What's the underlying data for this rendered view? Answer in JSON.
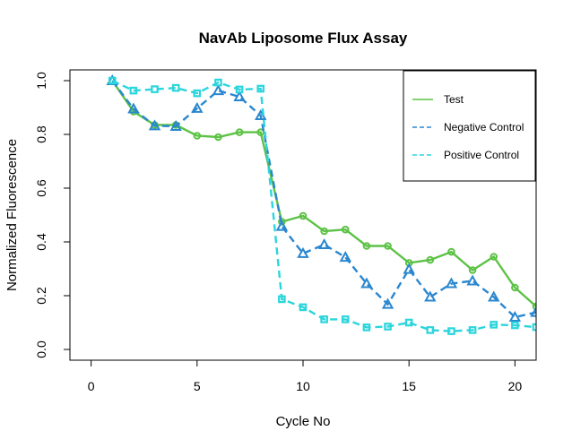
{
  "chart_data": {
    "type": "line",
    "title": "NavAb Liposome Flux Assay",
    "xlabel": "Cycle No",
    "ylabel": "Normalized Fluorescence",
    "xlim": [
      -1,
      21
    ],
    "ylim": [
      -0.04,
      1.04
    ],
    "x_ticks": [
      0,
      5,
      10,
      15,
      20
    ],
    "y_ticks": [
      0.0,
      0.2,
      0.4,
      0.6,
      0.8,
      1.0
    ],
    "legend_position": "top-right",
    "x": [
      1,
      2,
      3,
      4,
      5,
      6,
      7,
      8,
      9,
      10,
      11,
      12,
      13,
      14,
      15,
      16,
      17,
      18,
      19,
      20,
      21
    ],
    "series": [
      {
        "name": "Test",
        "color": "#5cc245",
        "line_style": "solid",
        "marker": "circle",
        "values": [
          1.0,
          0.885,
          0.835,
          0.835,
          0.795,
          0.79,
          0.808,
          0.808,
          0.475,
          0.497,
          0.44,
          0.446,
          0.385,
          0.385,
          0.322,
          0.333,
          0.363,
          0.295,
          0.345,
          0.23,
          0.16
        ]
      },
      {
        "name": "Negative Control",
        "color": "#2a87cf",
        "line_style": "dashed",
        "marker": "triangle",
        "values": [
          1.0,
          0.895,
          0.832,
          0.83,
          0.897,
          0.963,
          0.94,
          0.87,
          0.458,
          0.357,
          0.39,
          0.343,
          0.245,
          0.168,
          0.298,
          0.195,
          0.245,
          0.255,
          0.195,
          0.12,
          0.138
        ]
      },
      {
        "name": "Positive Control",
        "color": "#2bd5dc",
        "line_style": "dashed",
        "marker": "square",
        "values": [
          1.0,
          0.963,
          0.968,
          0.973,
          0.953,
          0.993,
          0.967,
          0.97,
          0.187,
          0.157,
          0.112,
          0.112,
          0.082,
          0.085,
          0.1,
          0.072,
          0.068,
          0.072,
          0.092,
          0.09,
          0.083
        ]
      }
    ]
  }
}
